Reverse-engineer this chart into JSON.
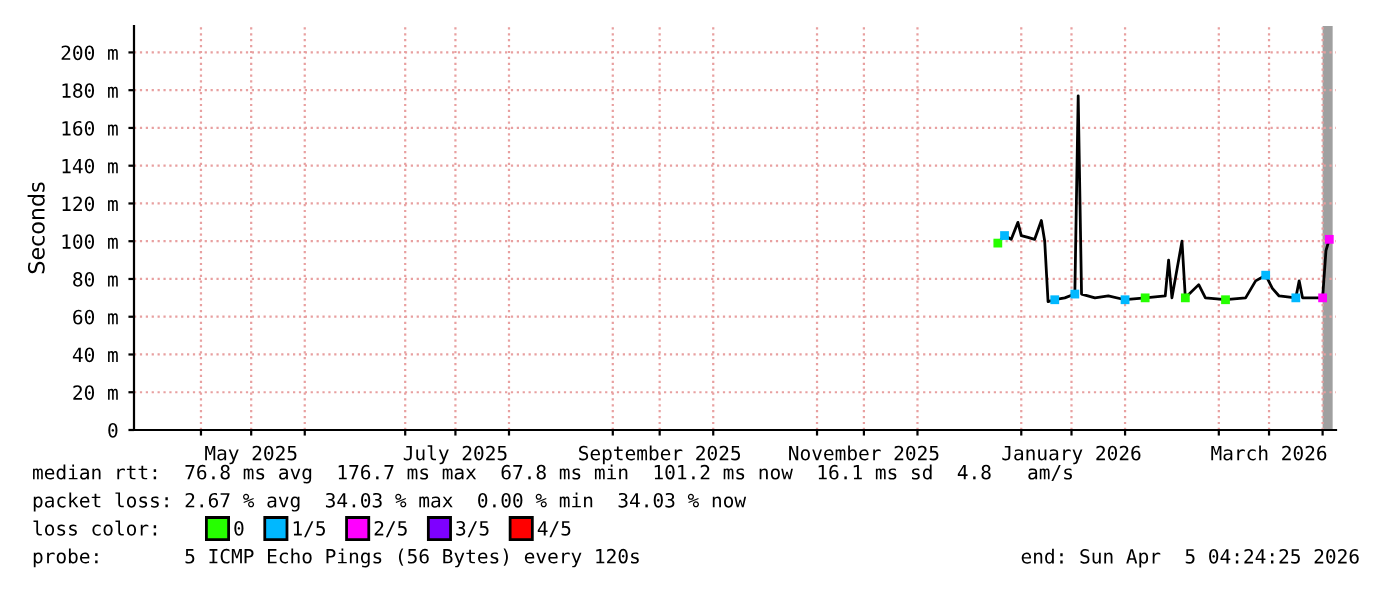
{
  "chart_data": {
    "type": "line",
    "ylabel": "Seconds",
    "xlim": [
      "2025-04-11",
      "2026-04-05"
    ],
    "xticks": [
      {
        "value": "2025-05-01",
        "label": null
      },
      {
        "value": "2025-05-16",
        "label": "May 2025"
      },
      {
        "value": "2025-06-01",
        "label": null
      },
      {
        "value": "2025-07-01",
        "label": null
      },
      {
        "value": "2025-07-16",
        "label": "July 2025"
      },
      {
        "value": "2025-08-01",
        "label": null
      },
      {
        "value": "2025-09-01",
        "label": null
      },
      {
        "value": "2025-09-15",
        "label": "September 2025"
      },
      {
        "value": "2025-10-01",
        "label": null
      },
      {
        "value": "2025-11-01",
        "label": null
      },
      {
        "value": "2025-11-15",
        "label": "November 2025"
      },
      {
        "value": "2025-12-01",
        "label": null
      },
      {
        "value": "2026-01-01",
        "label": null
      },
      {
        "value": "2026-01-16",
        "label": "January 2026"
      },
      {
        "value": "2026-02-01",
        "label": null
      },
      {
        "value": "2026-03-01",
        "label": null
      },
      {
        "value": "2026-03-16",
        "label": "March 2026"
      },
      {
        "value": "2026-04-01",
        "label": null
      }
    ],
    "ylim": [
      0,
      214
    ],
    "yticks": [
      0,
      {
        "value": 20,
        "label": "20 m"
      },
      {
        "value": 40,
        "label": "40 m"
      },
      {
        "value": 60,
        "label": "60 m"
      },
      {
        "value": 80,
        "label": "80 m"
      },
      {
        "value": 100,
        "label": "100 m"
      },
      {
        "value": 120,
        "label": "120 m"
      },
      {
        "value": 140,
        "label": "140 m"
      },
      {
        "value": 160,
        "label": "160 m"
      },
      {
        "value": 180,
        "label": "180 m"
      },
      {
        "value": 200,
        "label": "200 m"
      }
    ],
    "grid": true,
    "legend": "bottom left",
    "legend_title": "loss color:",
    "series": [
      {
        "color": "#000000",
        "x": [
          "2025-12-25",
          "2025-12-27",
          "2025-12-29",
          "2025-12-31",
          "2026-01-01",
          "2026-01-03",
          "2026-01-05",
          "2026-01-07",
          "2026-01-08",
          "2026-01-09",
          "2026-01-11",
          "2026-01-14",
          "2026-01-17",
          "2026-01-18",
          "2026-01-19",
          "2026-01-23",
          "2026-01-27",
          "2026-02-01",
          "2026-02-07",
          "2026-02-13",
          "2026-02-14",
          "2026-02-15",
          "2026-02-18",
          "2026-02-19",
          "2026-02-23",
          "2026-02-25",
          "2026-03-03",
          "2026-03-09",
          "2026-03-12",
          "2026-03-15",
          "2026-03-17",
          "2026-03-19",
          "2026-03-24",
          "2026-03-25",
          "2026-03-26",
          "2026-03-30",
          "2026-04-01",
          "2026-04-02",
          "2026-04-03"
        ],
        "values": [
          99,
          103,
          101,
          110,
          103,
          102,
          101,
          111,
          100,
          68,
          69,
          70,
          72,
          177,
          72,
          70,
          71,
          69,
          70,
          71,
          90,
          70,
          100,
          70,
          77,
          70,
          69,
          70,
          79,
          82,
          75,
          71,
          70,
          79,
          70,
          70,
          70,
          95,
          101
        ]
      },
      {
        "type": "scatter",
        "name": "0",
        "color": "#26ff00",
        "x": [
          "2025-12-25",
          "2026-02-07",
          "2026-02-19",
          "2026-03-03"
        ],
        "values": [
          99,
          70,
          70,
          69
        ]
      },
      {
        "type": "scatter",
        "name": "1/5",
        "color": "#00b8ff",
        "x": [
          "2025-12-27",
          "2026-01-11",
          "2026-01-17",
          "2026-02-01",
          "2026-03-15",
          "2026-03-24"
        ],
        "values": [
          103,
          69,
          72,
          69,
          82,
          70
        ]
      },
      {
        "type": "scatter",
        "name": "2/5",
        "color": "#ff00ff",
        "x": [
          "2026-04-01",
          "2026-04-03"
        ],
        "values": [
          70,
          101
        ]
      },
      {
        "type": "scatter",
        "name": "3/5",
        "color": "#7e00ff"
      },
      {
        "type": "scatter",
        "name": "4/5",
        "color": "#ff0000"
      }
    ],
    "bands": [
      {
        "axis": "x",
        "from": "2026-04-01",
        "to": "2026-04-04",
        "label": null,
        "color": "#a0a0a0"
      }
    ],
    "annotations": [
      "median rtt:  76.8 ms avg  176.7 ms max  67.8 ms min  101.2 ms now  16.1 ms sd  4.8   am/s",
      "packet loss: 2.67 % avg  34.03 % max  0.00 % min  34.03 % now",
      "probe:       5 ICMP Echo Pings (56 Bytes) every 120s",
      "end: Sun Apr  5 04:24:25 2026"
    ]
  }
}
